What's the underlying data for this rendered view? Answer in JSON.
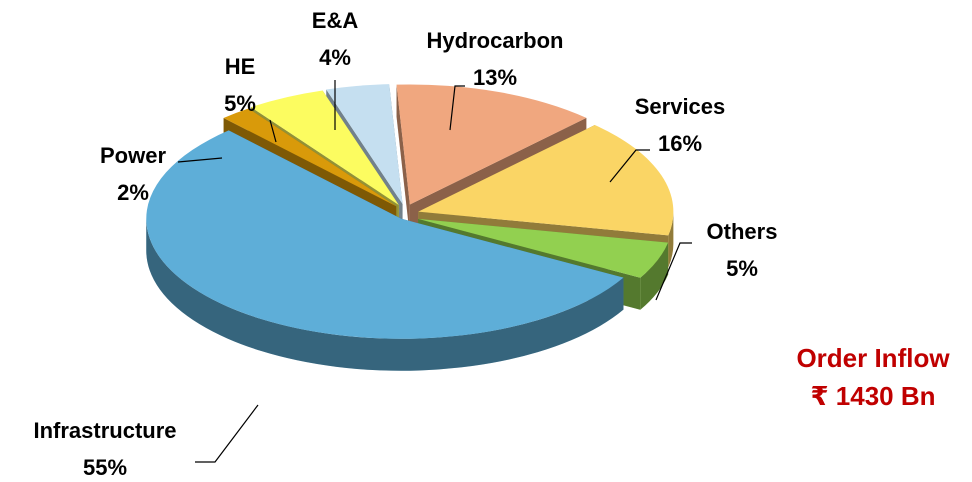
{
  "chart_data": {
    "type": "pie",
    "categories": [
      "Hydrocarbon",
      "Services",
      "Others",
      "Infrastructure",
      "Power",
      "HE",
      "E&A"
    ],
    "values": [
      13,
      16,
      5,
      55,
      2,
      5,
      4
    ],
    "value_labels": [
      "13%",
      "16%",
      "5%",
      "55%",
      "2%",
      "5%",
      "4%"
    ],
    "colors": [
      "#f0a77f",
      "#fad565",
      "#92d050",
      "#5eaed8",
      "#d99a0a",
      "#fcfc60",
      "#c5dff0"
    ],
    "annotations": [
      "Order Inflow",
      "₹ 1430 Bn"
    ]
  }
}
